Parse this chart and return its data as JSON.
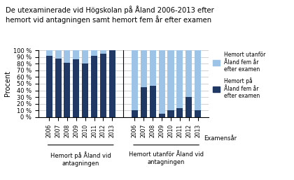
{
  "title": "De utexaminerade vid Högskolan på Åland 2006-2013 efter\nhemort vid antagningen samt hemort fem år efter examen",
  "ylabel": "Procent",
  "xlabel_right": "Examensår",
  "group1_label": "Hemort på Åland vid\nantagningen",
  "group2_label": "Hemort utanför Åland vid\nantagningen",
  "years": [
    "2006",
    "2007",
    "2008",
    "2009",
    "2010",
    "2011",
    "2012",
    "2013"
  ],
  "group1_dark": [
    92,
    88,
    81,
    87,
    80,
    92,
    95,
    100
  ],
  "group1_light": [
    8,
    12,
    19,
    13,
    20,
    8,
    5,
    0
  ],
  "group2_dark": [
    10,
    45,
    47,
    5,
    10,
    13,
    30,
    10
  ],
  "group2_light": [
    90,
    55,
    53,
    95,
    90,
    87,
    70,
    90
  ],
  "color_dark": "#1F3864",
  "color_light": "#9DC3E6",
  "legend_light": "Hemort utanför\nAland fem ar\nefter examen",
  "ylim": [
    0,
    100
  ],
  "yticks": [
    0,
    10,
    20,
    30,
    40,
    50,
    60,
    70,
    80,
    90,
    100
  ],
  "ytick_labels": [
    "0 %",
    "10 %",
    "20 %",
    "30 %",
    "40 %",
    "50 %",
    "60 %",
    "70 %",
    "80 %",
    "90 %",
    "100 %"
  ]
}
